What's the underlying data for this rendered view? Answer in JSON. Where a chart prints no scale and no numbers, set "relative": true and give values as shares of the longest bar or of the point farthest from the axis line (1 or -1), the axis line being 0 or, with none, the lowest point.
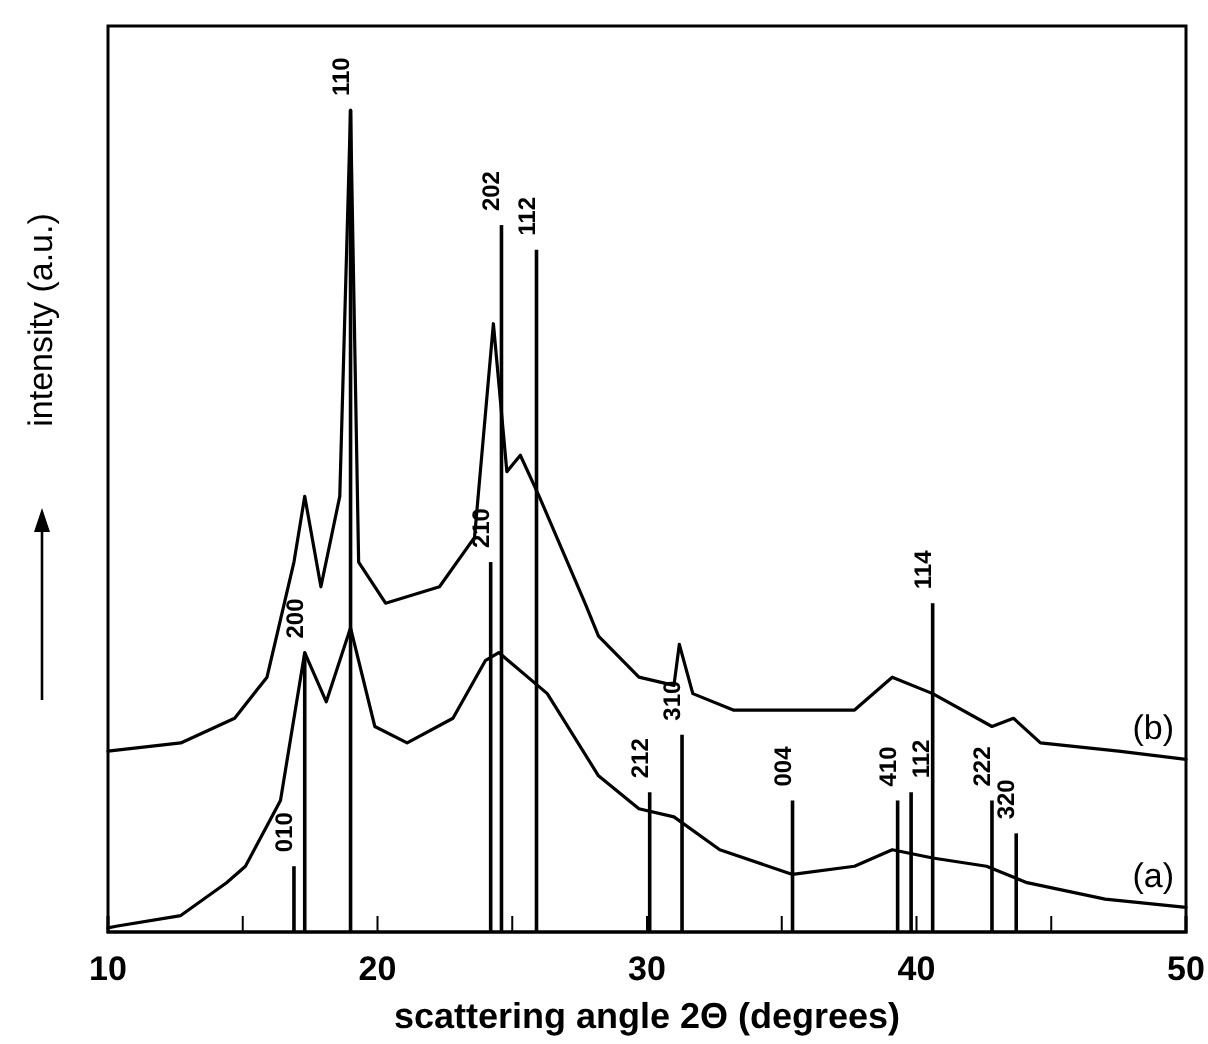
{
  "chart_data": {
    "type": "line",
    "relative": true,
    "xlabel": "scattering angle 2Θ (degrees)",
    "ylabel": "intensity (a.u.)",
    "xlim": [
      10,
      50
    ],
    "xticks": [
      10,
      {
        "value": 15,
        "label": null
      },
      20,
      {
        "value": 25,
        "label": null
      },
      30,
      {
        "value": 35,
        "label": null
      },
      40,
      {
        "value": 45,
        "label": null
      },
      50
    ],
    "tick_labels": "x",
    "series": [
      {
        "name": "(a)",
        "color": "#000000",
        "x": [
          10,
          10.3,
          12.7,
          14.4,
          15.1,
          16.4,
          16.9,
          17.3,
          18.1,
          19.0,
          19.9,
          21.1,
          22.8,
          24.0,
          24.5,
          26.3,
          28.2,
          29.7,
          31.0,
          32.7,
          35.4,
          37.7,
          39.1,
          40.6,
          42.6,
          44.1,
          47.0,
          50
        ],
        "values": [
          0.005,
          0.007,
          0.02,
          0.06,
          0.08,
          0.16,
          0.26,
          0.34,
          0.28,
          0.37,
          0.25,
          0.23,
          0.26,
          0.33,
          0.34,
          0.29,
          0.19,
          0.15,
          0.14,
          0.1,
          0.07,
          0.08,
          0.1,
          0.09,
          0.08,
          0.06,
          0.04,
          0.03
        ]
      },
      {
        "name": "(b)",
        "color": "#000000",
        "x": [
          10,
          12.7,
          14.7,
          15.9,
          16.9,
          17.3,
          17.9,
          18.6,
          19.0,
          19.3,
          20.3,
          22.3,
          23.6,
          24.3,
          24.8,
          25.3,
          26.0,
          27.7,
          28.2,
          29.7,
          31.0,
          31.2,
          31.7,
          33.2,
          35.2,
          37.7,
          39.1,
          40.6,
          42.8,
          43.6,
          44.6,
          47.5,
          50
        ],
        "values": [
          0.22,
          0.23,
          0.26,
          0.31,
          0.45,
          0.53,
          0.42,
          0.53,
          1.0,
          0.45,
          0.4,
          0.42,
          0.48,
          0.74,
          0.56,
          0.58,
          0.53,
          0.4,
          0.36,
          0.31,
          0.3,
          0.35,
          0.29,
          0.27,
          0.27,
          0.27,
          0.31,
          0.29,
          0.25,
          0.26,
          0.23,
          0.22,
          0.21
        ]
      },
      {
        "type": "bar",
        "color": "#000000",
        "x": [
          16.9,
          17.3,
          19.0,
          24.2,
          24.6,
          25.9,
          30.1,
          31.3,
          35.4,
          39.3,
          39.8,
          40.6,
          42.8,
          43.7
        ],
        "values": [
          0.08,
          0.34,
          1.0,
          0.45,
          0.86,
          0.83,
          0.17,
          0.24,
          0.16,
          0.16,
          0.17,
          0.4,
          0.16,
          0.12
        ]
      }
    ],
    "annotations": [
      {
        "text": "010",
        "x": 16.9,
        "y": 0.08
      },
      {
        "text": "200",
        "x": 17.3,
        "y": 0.34
      },
      {
        "text": "110",
        "x": 19.0,
        "y": 1.0
      },
      {
        "text": "210",
        "x": 24.2,
        "y": 0.45
      },
      {
        "text": "202",
        "x": 24.6,
        "y": 0.86
      },
      {
        "text": "112",
        "x": 25.9,
        "y": 0.83
      },
      {
        "text": "212",
        "x": 30.1,
        "y": 0.17
      },
      {
        "text": "310",
        "x": 31.3,
        "y": 0.24
      },
      {
        "text": "004",
        "x": 35.4,
        "y": 0.16
      },
      {
        "text": "410",
        "x": 39.3,
        "y": 0.16
      },
      {
        "text": "112",
        "x": 39.8,
        "y": 0.17
      },
      {
        "text": "114",
        "x": 40.6,
        "y": 0.4
      },
      {
        "text": "222",
        "x": 42.8,
        "y": 0.16
      },
      {
        "text": "320",
        "x": 43.7,
        "y": 0.12
      }
    ]
  }
}
